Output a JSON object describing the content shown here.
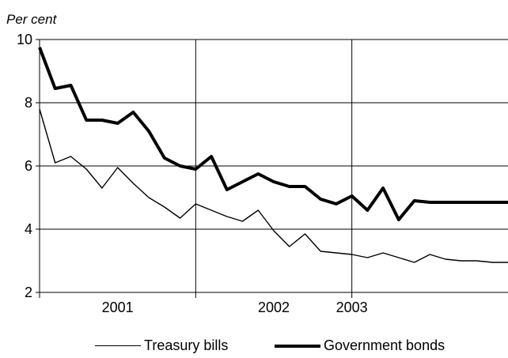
{
  "chart_data": {
    "type": "line",
    "ylabel": "Per cent",
    "ylim": [
      2,
      10
    ],
    "yticks": [
      2,
      4,
      6,
      8,
      10
    ],
    "xlim": [
      0,
      30
    ],
    "x_tick_labels": [
      {
        "label": "2001",
        "x": 5
      },
      {
        "label": "2002",
        "x": 15
      },
      {
        "label": "2003",
        "x": 20
      }
    ],
    "year_separators": [
      10,
      20
    ],
    "grid": true,
    "legend": "bottom",
    "x": [
      0,
      1,
      2,
      3,
      4,
      5,
      6,
      7,
      8,
      9,
      10,
      11,
      12,
      13,
      14,
      15,
      16,
      17,
      18,
      19,
      20,
      21,
      22,
      23,
      24,
      25,
      26,
      27,
      28,
      29,
      30
    ],
    "series": [
      {
        "name": "Treasury bills",
        "style": "thin",
        "values": [
          7.8,
          6.1,
          6.3,
          5.9,
          5.3,
          5.95,
          5.45,
          5.0,
          4.7,
          4.35,
          4.8,
          4.6,
          4.4,
          4.25,
          4.6,
          3.95,
          3.45,
          3.85,
          3.3,
          3.25,
          3.2,
          3.1,
          3.25,
          3.1,
          2.95,
          3.2,
          3.05,
          3.0,
          3.0,
          2.95,
          2.95
        ]
      },
      {
        "name": "Government bonds",
        "style": "thick",
        "values": [
          9.75,
          8.45,
          8.55,
          7.45,
          7.45,
          7.35,
          7.7,
          7.1,
          6.25,
          6.0,
          5.9,
          6.3,
          5.25,
          5.5,
          5.75,
          5.5,
          5.35,
          5.35,
          4.95,
          4.8,
          5.05,
          4.6,
          5.3,
          4.3,
          4.9,
          4.85,
          4.85,
          4.85,
          4.85,
          4.85,
          4.85
        ]
      }
    ]
  }
}
